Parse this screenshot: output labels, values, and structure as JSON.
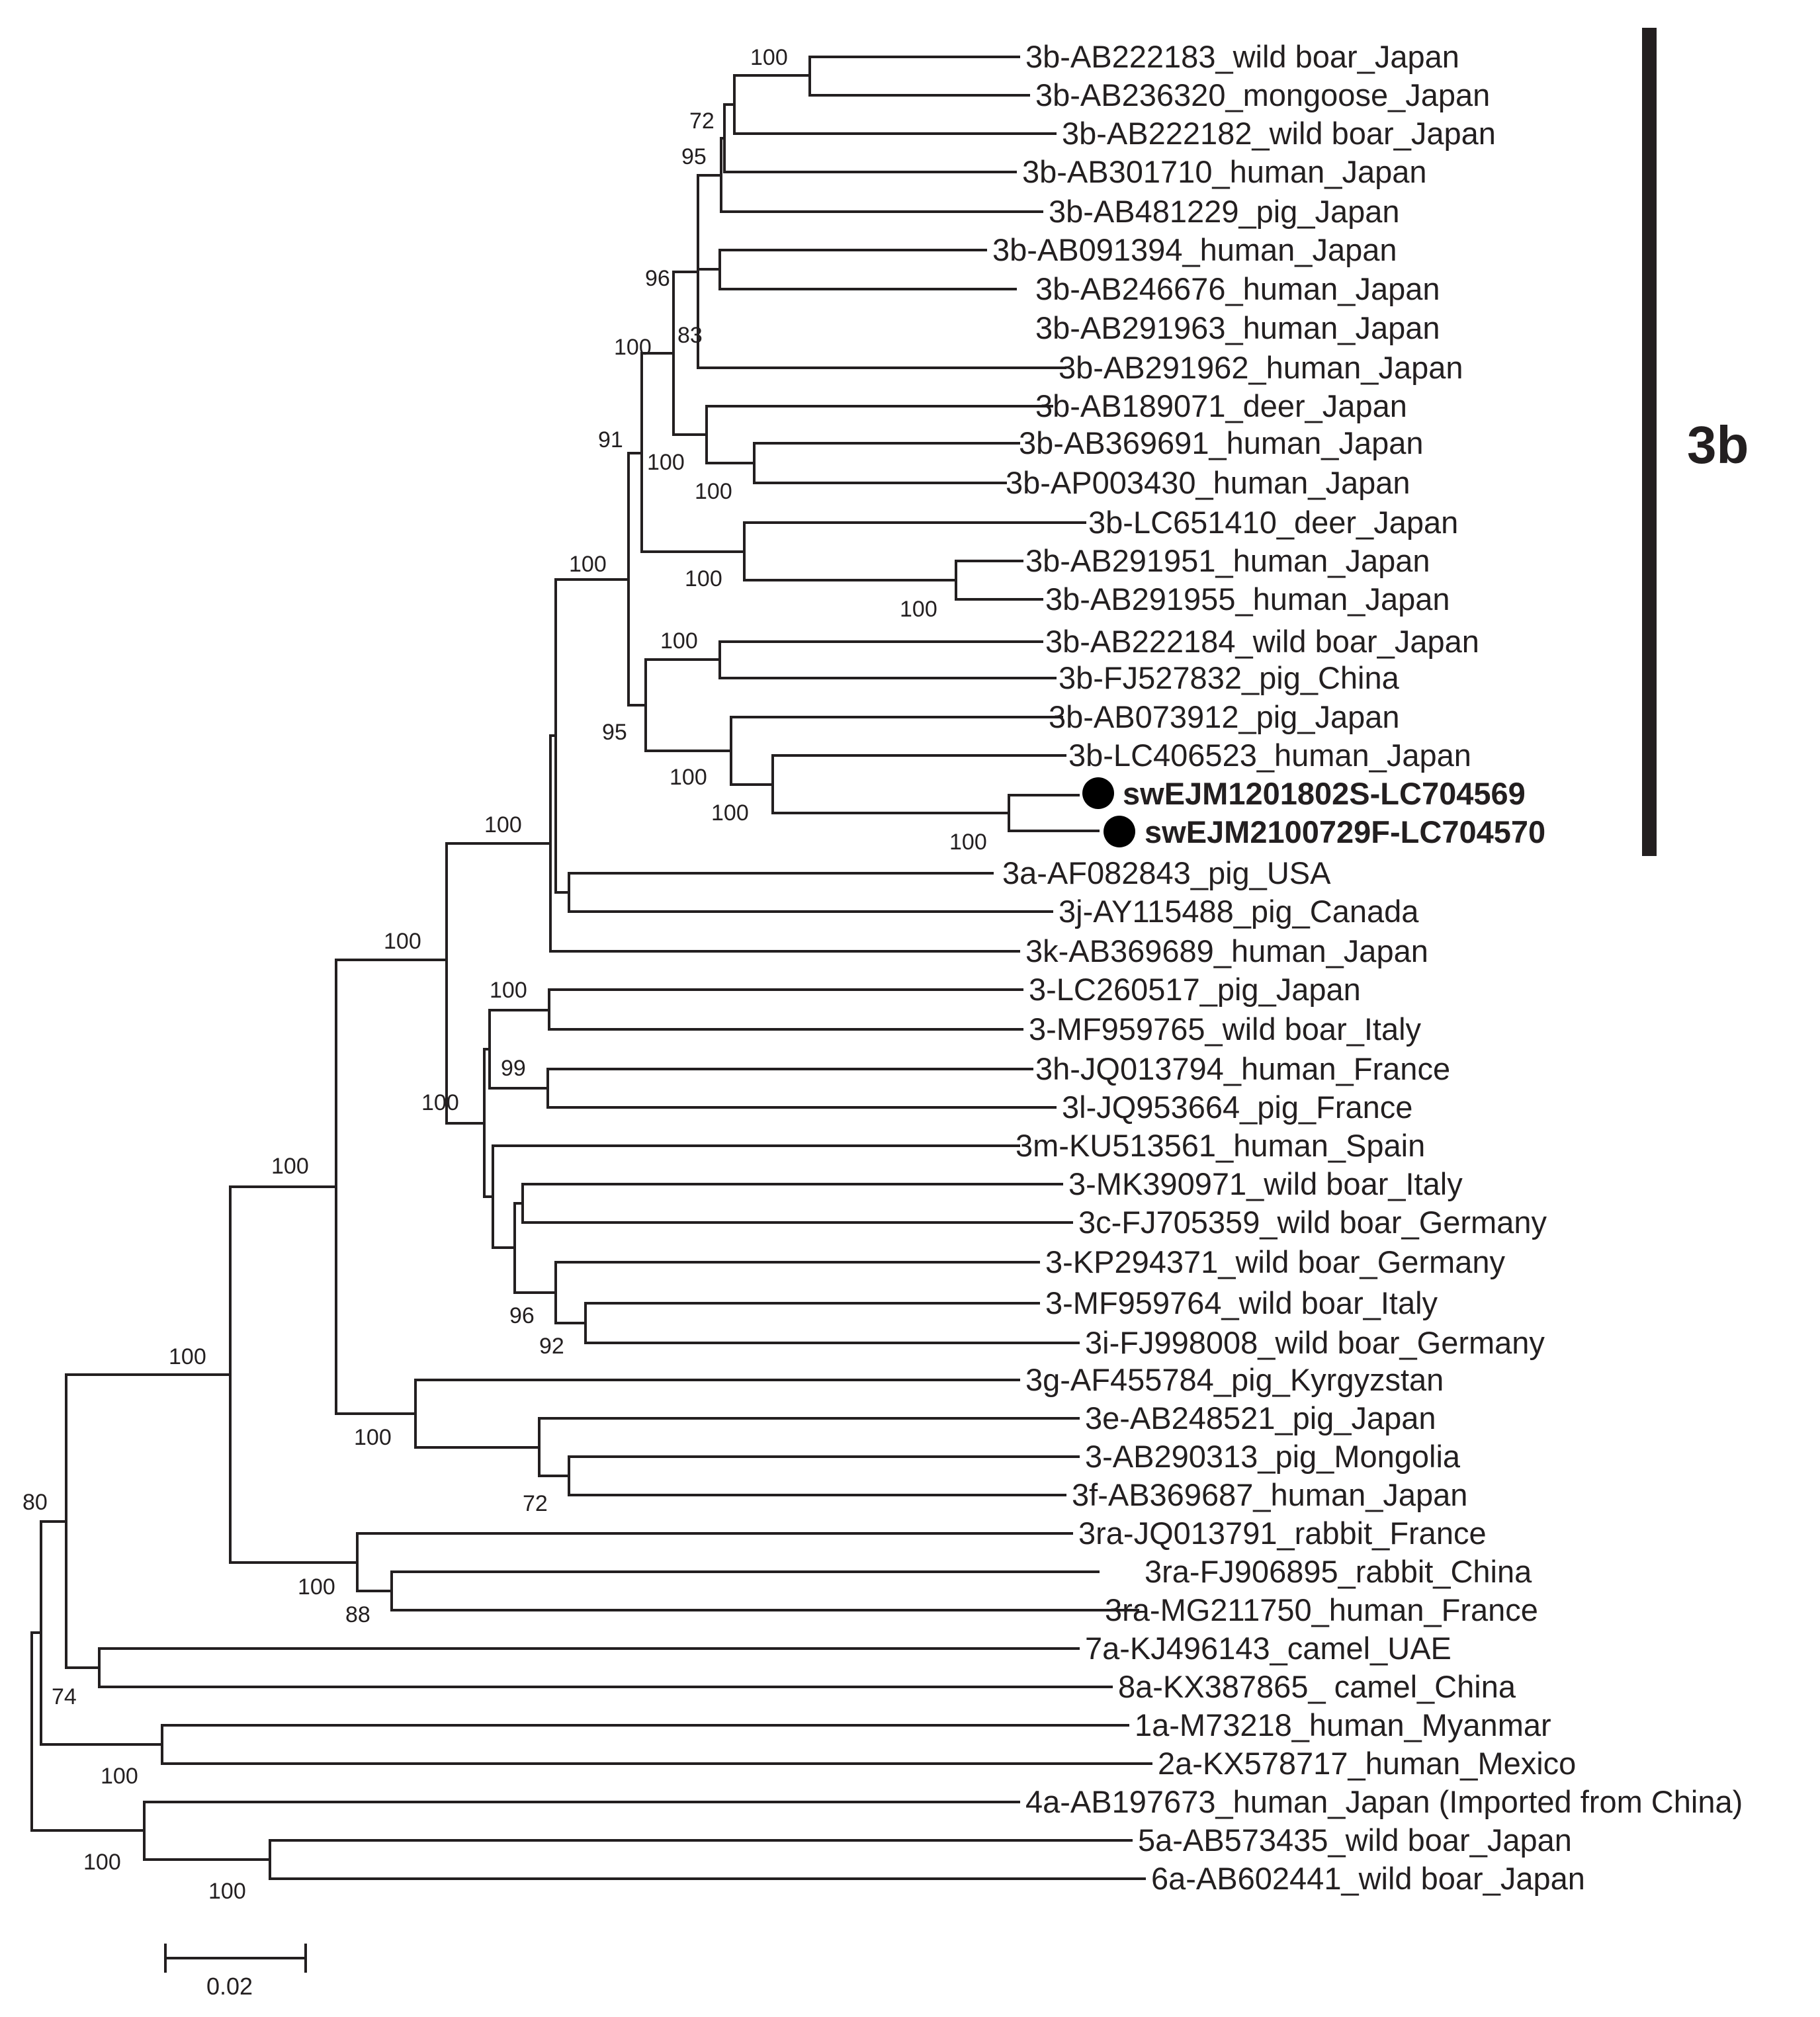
{
  "leaves": [
    "3b-AB222183_wild boar_Japan",
    "3b-AB236320_mongoose_Japan",
    "3b-AB222182_wild boar_Japan",
    "3b-AB301710_human_Japan",
    "3b-AB481229_pig_Japan",
    "3b-AB091394_human_Japan",
    "3b-AB246676_human_Japan",
    "3b-AB291963_human_Japan",
    "3b-AB291962_human_Japan",
    "3b-AB189071_deer_Japan",
    "3b-AB369691_human_Japan",
    "3b-AP003430_human_Japan",
    "3b-LC651410_deer_Japan",
    "3b-AB291951_human_Japan",
    "3b-AB291955_human_Japan",
    "3b-AB222184_wild boar_Japan",
    "3b-FJ527832_pig_China",
    "3b-AB073912_pig_Japan",
    "3b-LC406523_human_Japan",
    "swEJM1201802S-LC704569",
    "swEJM2100729F-LC704570",
    "3a-AF082843_pig_USA",
    "3j-AY115488_pig_Canada",
    "3k-AB369689_human_Japan",
    "3-LC260517_pig_Japan",
    "3-MF959765_wild boar_Italy",
    "3h-JQ013794_human_France",
    "3l-JQ953664_pig_France",
    "3m-KU513561_human_Spain",
    "3-MK390971_wild boar_Italy",
    "3c-FJ705359_wild boar_Germany",
    "3-KP294371_wild boar_Germany",
    "3-MF959764_wild boar_Italy",
    "3i-FJ998008_wild boar_Germany",
    "3g-AF455784_pig_Kyrgyzstan",
    "3e-AB248521_pig_Japan",
    "3-AB290313_pig_Mongolia",
    "3f-AB369687_human_Japan",
    "3ra-JQ013791_rabbit_France",
    "3ra-FJ906895_rabbit_China",
    "3ra-MG211750_human_France",
    "7a-KJ496143_camel_UAE",
    "8a-KX387865_ camel_China",
    "1a-M73218_human_Myanmar",
    "2a-KX578717_human_Mexico",
    "4a-AB197673_human_Japan (Imported from China)",
    "5a-AB573435_wild boar_Japan",
    "6a-AB602441_wild boar_Japan"
  ],
  "highlighted_samples": [
    "swEJM1201802S-LC704569",
    "swEJM2100729F-LC704570"
  ],
  "bootstrap": [
    "100",
    "72",
    "95",
    "96",
    "83",
    "100",
    "91",
    "100",
    "100",
    "100",
    "100",
    "100",
    "100",
    "95",
    "100",
    "100",
    "100",
    "100",
    "100",
    "100",
    "99",
    "100",
    "96",
    "92",
    "100",
    "100",
    "72",
    "100",
    "88",
    "80",
    "74",
    "100",
    "100",
    "100"
  ],
  "clade_label": "3b",
  "scale_bar": {
    "value": "0.02"
  },
  "colors": {
    "ink": "#231f20"
  }
}
